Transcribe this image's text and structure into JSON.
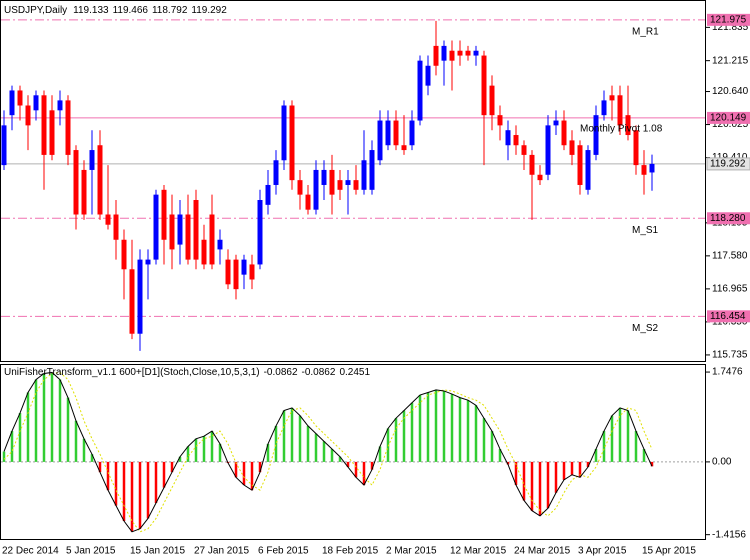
{
  "chart_data": [
    {
      "type": "candlestick",
      "title": "USDJPY,Daily",
      "categories": [
        "22 Dec 2014",
        null,
        null,
        null,
        null,
        null,
        null,
        null,
        "5 Jan 2015",
        null,
        null,
        null,
        null,
        null,
        null,
        null,
        "15 Jan 2015",
        null,
        null,
        null,
        null,
        null,
        null,
        null,
        "27 Jan 2015",
        null,
        null,
        null,
        null,
        null,
        null,
        null,
        "6 Feb 2015",
        null,
        null,
        null,
        null,
        null,
        null,
        null,
        "18 Feb 2015",
        null,
        null,
        null,
        null,
        null,
        null,
        null,
        "2 Mar 2015",
        null,
        null,
        null,
        null,
        null,
        null,
        null,
        "12 Mar 2015",
        null,
        null,
        null,
        null,
        null,
        null,
        null,
        "24 Mar 2015",
        null,
        null,
        null,
        null,
        null,
        null,
        null,
        "3 Apr 2015",
        null,
        null,
        null,
        null,
        null,
        null,
        null,
        "15 Apr 2015",
        null
      ],
      "open": [
        119.27,
        120.2,
        120.66,
        120.38,
        120.29,
        120.57,
        120.29,
        120.29,
        120.475,
        119.55,
        119.18,
        119.18,
        119.64,
        118.35,
        118.35,
        117.88,
        117.33,
        116.13,
        117.42,
        117.51,
        118.81,
        118.35,
        117.79,
        118.35,
        118.62,
        117.88,
        118.35,
        117.7,
        117.51,
        117.51,
        117.23,
        117.42,
        117.42,
        118.53,
        118.9,
        119.36,
        120.38,
        118.99,
        118.72,
        118.44,
        118.9,
        119.18,
        118.99,
        118.9,
        118.99,
        118.81,
        118.81,
        119.36,
        119.64,
        120.1,
        119.64,
        119.64,
        120.1,
        120.75,
        121.49,
        121.215,
        121.4,
        121.4,
        121.4,
        121.31,
        121.31,
        120.75,
        120.2,
        119.64,
        119.83,
        119.64,
        119.46,
        119.09,
        119.09,
        120.01,
        120.1,
        119.73,
        119.64,
        118.81,
        119.46,
        120.2,
        120.57,
        120.57,
        120.2,
        119.92,
        119.27,
        119.133
      ],
      "high": [
        120.29,
        120.75,
        120.75,
        120.57,
        120.66,
        120.66,
        120.57,
        120.66,
        120.57,
        119.64,
        119.36,
        119.92,
        119.92,
        119.27,
        118.62,
        118.07,
        117.88,
        117.7,
        117.7,
        118.81,
        118.9,
        118.72,
        118.62,
        118.72,
        118.81,
        118.16,
        118.72,
        118.07,
        117.7,
        117.6,
        117.6,
        117.6,
        118.81,
        119.18,
        119.55,
        120.475,
        120.475,
        119.18,
        118.9,
        119.36,
        119.36,
        119.46,
        119.18,
        119.18,
        119.27,
        119.92,
        119.73,
        120.29,
        120.29,
        120.29,
        120.2,
        120.29,
        121.31,
        121.31,
        121.956,
        121.59,
        121.59,
        121.59,
        121.49,
        121.49,
        121.4,
        120.94,
        120.38,
        120.1,
        120.01,
        119.73,
        119.55,
        119.27,
        120.2,
        120.29,
        120.29,
        119.92,
        119.73,
        119.64,
        120.38,
        120.66,
        120.75,
        120.75,
        120.75,
        120.01,
        119.55,
        119.466
      ],
      "low": [
        119.18,
        119.92,
        120.1,
        119.55,
        120.1,
        118.81,
        119.36,
        120.01,
        119.27,
        118.07,
        118.25,
        118.35,
        118.25,
        118.07,
        117.51,
        116.77,
        116.03,
        115.81,
        116.77,
        117.42,
        117.42,
        117.33,
        117.42,
        117.42,
        117.33,
        117.33,
        117.33,
        117.42,
        116.96,
        116.77,
        116.96,
        116.96,
        117.33,
        118.35,
        118.72,
        119.18,
        118.81,
        118.44,
        118.35,
        118.35,
        118.62,
        118.35,
        118.62,
        118.35,
        118.72,
        118.72,
        118.72,
        119.27,
        119.55,
        119.55,
        119.46,
        119.55,
        120.01,
        120.57,
        120.94,
        120.75,
        120.66,
        121.12,
        121.215,
        121.12,
        119.27,
        119.92,
        119.73,
        119.36,
        119.46,
        119.18,
        118.25,
        118.9,
        118.99,
        119.83,
        119.55,
        119.27,
        118.72,
        118.72,
        119.36,
        120.1,
        120.1,
        119.83,
        119.73,
        119.09,
        118.72,
        118.792
      ],
      "close": [
        120.01,
        120.66,
        120.38,
        120.01,
        120.57,
        119.46,
        119.46,
        120.475,
        119.46,
        118.35,
        118.35,
        119.55,
        118.35,
        118.16,
        117.88,
        117.33,
        116.13,
        117.51,
        117.51,
        118.72,
        117.88,
        117.7,
        118.35,
        117.51,
        117.51,
        117.42,
        117.42,
        117.88,
        117.05,
        116.96,
        117.51,
        117.14,
        118.62,
        118.9,
        119.36,
        120.38,
        118.99,
        118.72,
        118.44,
        119.18,
        119.18,
        118.72,
        118.81,
        118.99,
        118.81,
        119.36,
        119.55,
        120.1,
        120.1,
        119.64,
        119.55,
        120.1,
        121.215,
        121.12,
        121.12,
        121.49,
        121.215,
        121.31,
        121.31,
        121.4,
        120.2,
        120.2,
        120.01,
        119.92,
        119.64,
        119.46,
        119.09,
        118.99,
        120.01,
        120.1,
        119.64,
        119.46,
        118.9,
        119.55,
        120.2,
        120.475,
        120.475,
        120.01,
        119.83,
        119.27,
        119.09,
        119.292
      ],
      "colors": {
        "up": "#0000ff",
        "down": "#ff0000",
        "level": "#f070b0",
        "current": "#b0b0b0"
      },
      "levels": [
        {
          "name": "M_R1",
          "value": 121.975,
          "style": "dashdot"
        },
        {
          "name": "Monthly Pivot 1.08",
          "value": 120.149,
          "style": "solid"
        },
        {
          "name": "M_S1",
          "value": 118.28,
          "label": "118.280",
          "style": "dashdot"
        },
        {
          "name": "M_S2",
          "value": 116.454,
          "style": "dashdot"
        }
      ],
      "ylim": [
        115.622,
        122.326
      ],
      "yticks": [
        115.735,
        {
          "value": 116.35,
          "label": "116.350"
        },
        116.965,
        {
          "value": 117.58,
          "label": "117.580"
        },
        118.195,
        {
          "value": 119.41,
          "label": "119.410"
        },
        120.025,
        {
          "value": 120.64,
          "label": "120.640"
        },
        121.215,
        121.835
      ]
    },
    {
      "type": "histogram-oscillator",
      "title": "UniFisherTransform_v1.1 600+[D1](Stoch,Close,10,5,3,1)",
      "values": [
        0.2,
        0.6,
        0.95,
        1.35,
        1.6,
        1.72,
        1.74,
        1.6,
        1.25,
        0.8,
        0.45,
        0.15,
        -0.2,
        -0.55,
        -0.85,
        -1.15,
        -1.36,
        -1.3,
        -1.1,
        -0.8,
        -0.5,
        -0.2,
        0.1,
        0.3,
        0.45,
        0.5,
        0.6,
        0.35,
        -0.02,
        -0.3,
        -0.45,
        -0.55,
        -0.2,
        0.35,
        0.7,
        1.0,
        1.05,
        0.9,
        0.7,
        0.55,
        0.4,
        0.25,
        0.1,
        -0.1,
        -0.3,
        -0.45,
        -0.15,
        0.3,
        0.65,
        0.85,
        1.0,
        1.15,
        1.3,
        1.35,
        1.4,
        1.38,
        1.32,
        1.25,
        1.2,
        1.1,
        0.85,
        0.6,
        0.25,
        -0.05,
        -0.45,
        -0.75,
        -0.95,
        -1.05,
        -0.9,
        -0.6,
        -0.35,
        -0.25,
        -0.3,
        -0.1,
        0.25,
        0.6,
        0.9,
        1.05,
        1.0,
        0.6,
        0.25,
        -0.0862
      ],
      "signal": [
        0.05,
        0.2,
        0.6,
        0.95,
        1.35,
        1.6,
        1.72,
        1.74,
        1.6,
        1.25,
        0.8,
        0.45,
        0.15,
        -0.2,
        -0.55,
        -0.85,
        -1.15,
        -1.36,
        -1.3,
        -1.1,
        -0.8,
        -0.5,
        -0.2,
        0.1,
        0.3,
        0.45,
        0.5,
        0.6,
        0.35,
        -0.02,
        -0.3,
        -0.45,
        -0.55,
        -0.2,
        0.35,
        0.7,
        1.0,
        1.05,
        0.9,
        0.7,
        0.55,
        0.4,
        0.25,
        0.1,
        -0.1,
        -0.3,
        -0.45,
        -0.15,
        0.3,
        0.65,
        0.85,
        1.0,
        1.15,
        1.3,
        1.35,
        1.4,
        1.38,
        1.32,
        1.25,
        1.2,
        1.1,
        0.85,
        0.6,
        0.25,
        -0.05,
        -0.45,
        -0.75,
        -0.95,
        -1.05,
        -0.9,
        -0.6,
        -0.35,
        -0.25,
        -0.3,
        -0.1,
        0.25,
        0.6,
        0.9,
        1.05,
        1.0,
        0.6,
        0.2451
      ],
      "colors": {
        "up": "#32cd32",
        "down": "#ff0000",
        "line": "#000000",
        "signal": "#e0e000"
      },
      "ylim": [
        -1.5,
        1.885
      ],
      "yticks": [
        -1.4156,
        {
          "value": 0,
          "label": "0.00"
        },
        1.7476
      ]
    }
  ]
}
